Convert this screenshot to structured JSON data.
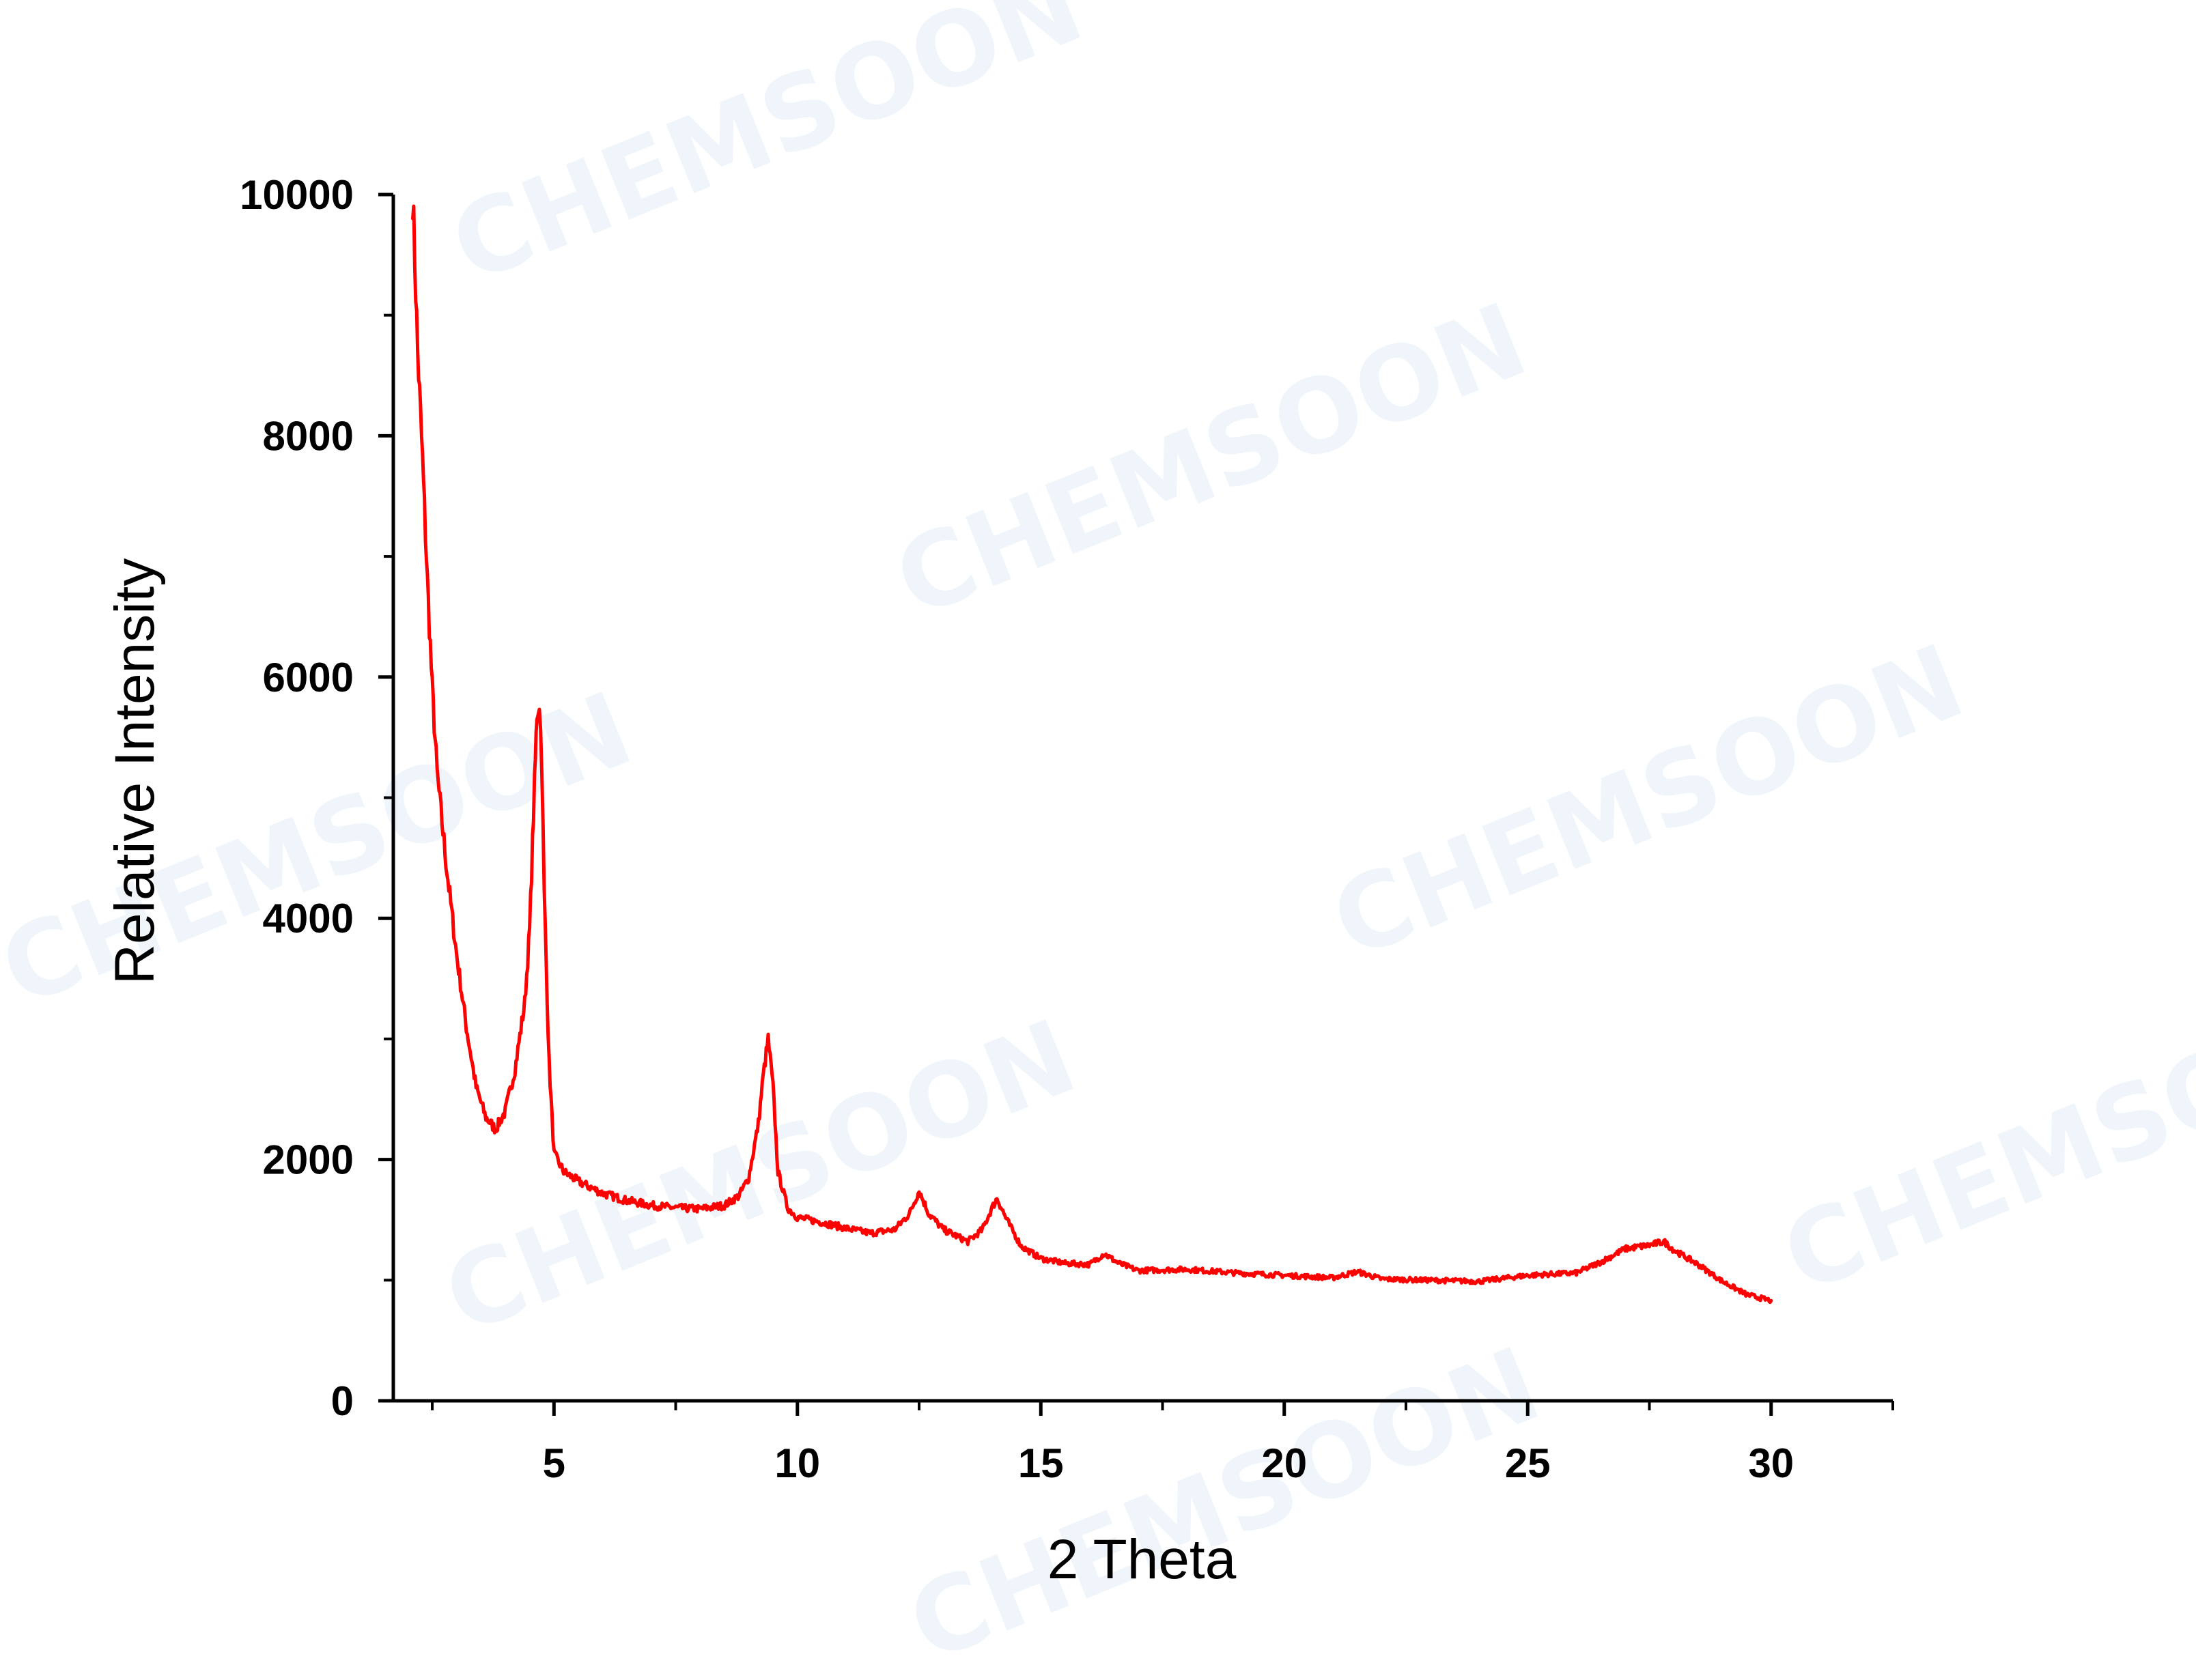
{
  "watermark": {
    "text": "CHEMSOON"
  },
  "chart_data": {
    "type": "line",
    "title": "",
    "xlabel": "2 Theta",
    "ylabel": "Relative Intensity",
    "xlim": [
      1.7,
      32.5
    ],
    "ylim": [
      0,
      10000
    ],
    "xticks": [
      5,
      10,
      15,
      20,
      25,
      30
    ],
    "yticks": [
      0,
      2000,
      4000,
      6000,
      8000,
      10000
    ],
    "grid": false,
    "legend": "none",
    "line_color": "#ff0000",
    "series": [
      {
        "x": [
          2.1,
          2.2,
          2.3,
          2.4,
          2.5,
          2.6,
          2.8,
          3.0,
          3.2,
          3.4,
          3.6,
          3.8,
          4.0,
          4.2,
          4.4,
          4.5,
          4.6,
          4.65,
          4.7,
          4.75,
          4.8,
          4.9,
          5.0,
          5.2,
          5.5,
          6.0,
          6.5,
          7.0,
          7.5,
          8.0,
          8.5,
          8.8,
          9.0,
          9.2,
          9.3,
          9.4,
          9.5,
          9.6,
          9.8,
          10.0,
          10.5,
          11.0,
          11.5,
          12.0,
          12.3,
          12.5,
          12.7,
          13.0,
          13.5,
          13.8,
          14.0,
          14.1,
          14.3,
          14.6,
          15.0,
          15.5,
          16.0,
          16.3,
          16.6,
          17.0,
          18.0,
          19.0,
          20.0,
          21.0,
          21.5,
          22.0,
          23.0,
          24.0,
          25.0,
          26.0,
          26.5,
          27.0,
          27.5,
          27.8,
          28.0,
          28.5,
          29.0,
          29.5,
          30.0
        ],
        "values": [
          10000,
          8700,
          7800,
          6800,
          5900,
          5200,
          4400,
          3700,
          3100,
          2600,
          2350,
          2250,
          2400,
          2750,
          3300,
          3900,
          5100,
          5700,
          5800,
          5300,
          4200,
          2800,
          2050,
          1900,
          1820,
          1720,
          1660,
          1620,
          1600,
          1590,
          1620,
          1700,
          1850,
          2300,
          2700,
          3000,
          2600,
          1900,
          1600,
          1520,
          1480,
          1430,
          1390,
          1420,
          1550,
          1740,
          1550,
          1420,
          1320,
          1420,
          1600,
          1680,
          1500,
          1280,
          1180,
          1140,
          1130,
          1220,
          1140,
          1080,
          1090,
          1060,
          1040,
          1020,
          1070,
          1010,
          1000,
          990,
          1040,
          1060,
          1150,
          1260,
          1290,
          1320,
          1250,
          1130,
          990,
          880,
          830
        ]
      }
    ]
  }
}
